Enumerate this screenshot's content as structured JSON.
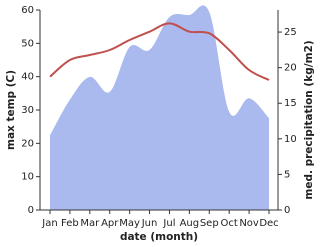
{
  "chart_data": {
    "type": "line-area",
    "x_label": "date (month)",
    "y_label": "max temp (C)",
    "y2_label": "med. precipitation (kg/m2)",
    "categories": [
      "Jan",
      "Feb",
      "Mar",
      "Apr",
      "May",
      "Jun",
      "Jul",
      "Aug",
      "Sep",
      "Oct",
      "Nov",
      "Dec"
    ],
    "series": [
      {
        "kind": "area",
        "axis": "y2",
        "color": "#aab9ee",
        "values": [
          10.5,
          15.5,
          18.7,
          16.6,
          22.9,
          22.5,
          27.1,
          27.4,
          27.8,
          13.8,
          15.7,
          12.9
        ]
      },
      {
        "kind": "line",
        "color": "#c0504d",
        "values": [
          40,
          45,
          46.5,
          48,
          51,
          53.5,
          56,
          53.5,
          53,
          48,
          42,
          39
        ]
      }
    ],
    "ylim": [
      0,
      60
    ],
    "yticks": [
      0,
      10,
      20,
      30,
      40,
      50,
      60
    ],
    "y2lim": [
      0,
      28.1
    ],
    "y2ticks": [
      0,
      5,
      10,
      15,
      20,
      25
    ]
  }
}
